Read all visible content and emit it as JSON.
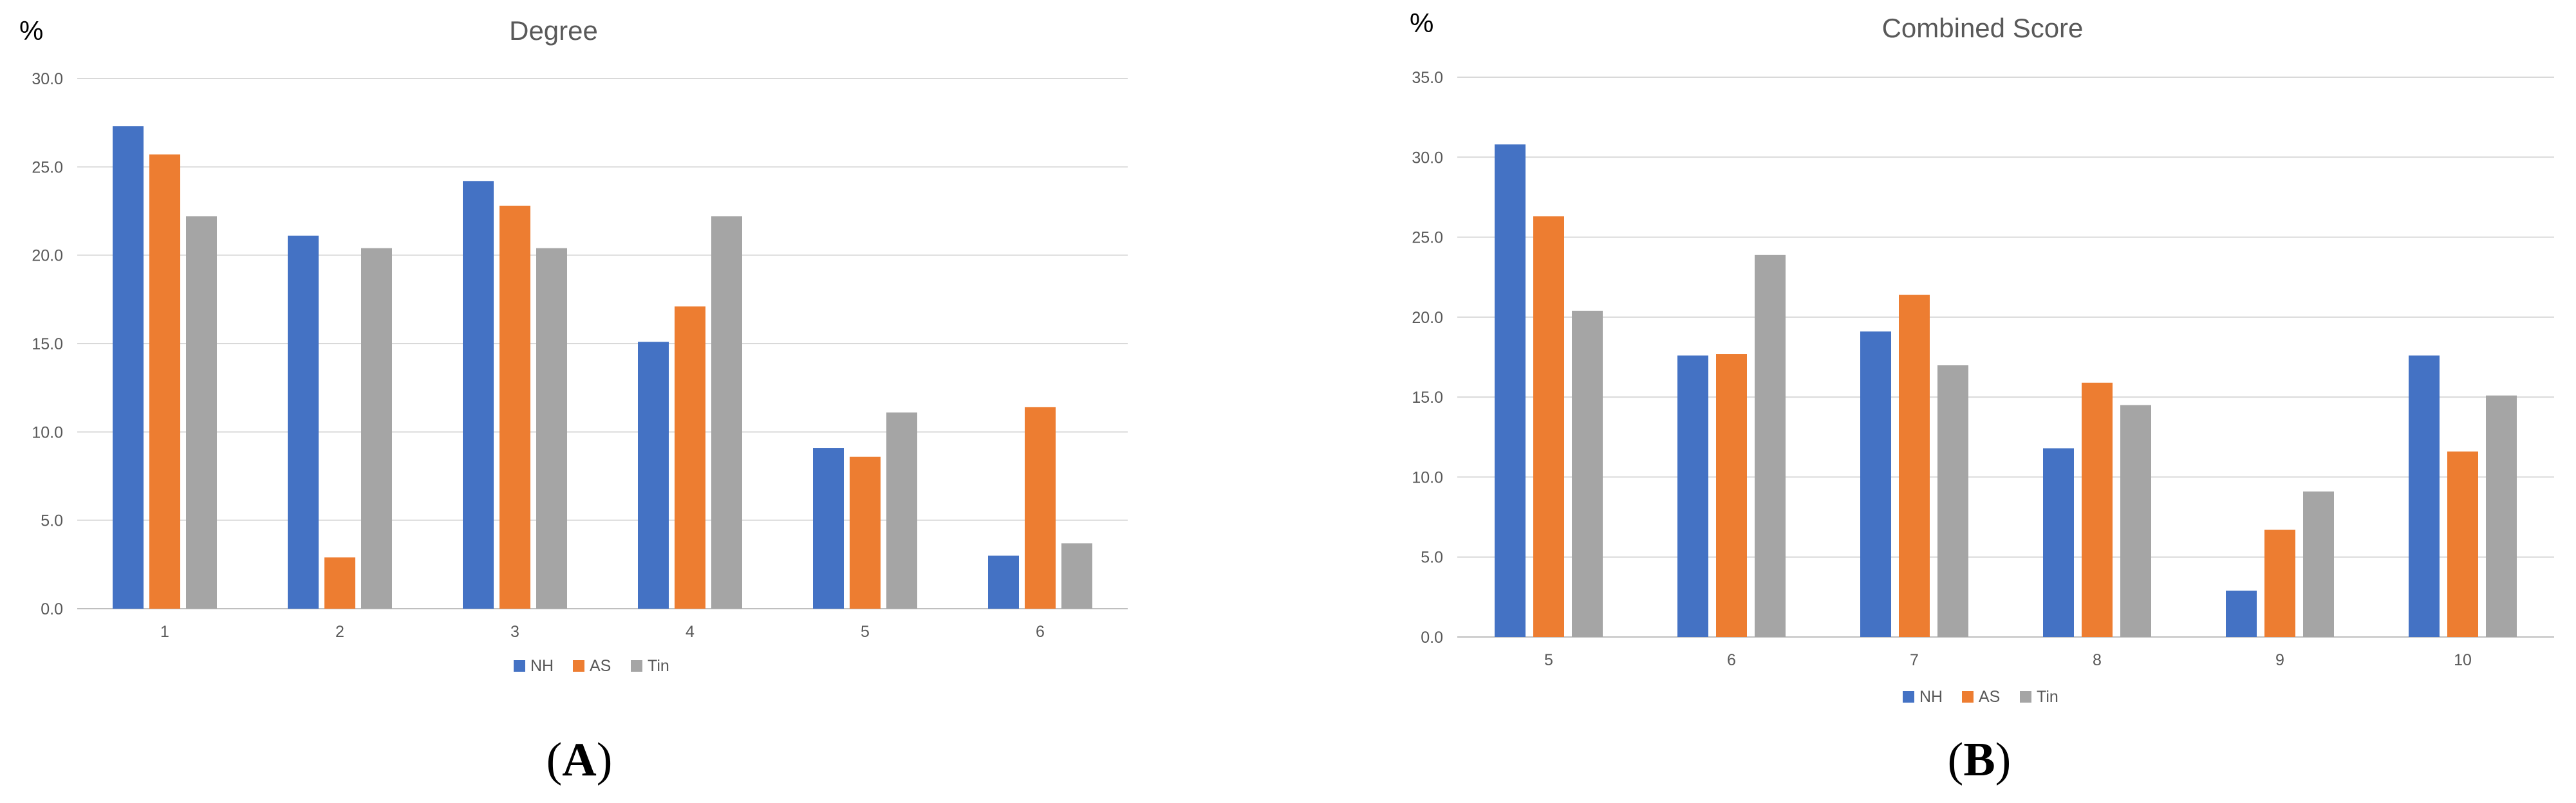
{
  "chart_data": [
    {
      "type": "bar",
      "title": "Degree",
      "unit": "%",
      "panel_label": "A",
      "categories": [
        "1",
        "2",
        "3",
        "4",
        "5",
        "6"
      ],
      "series": [
        {
          "name": "NH",
          "color": "#4472C4",
          "values": [
            27.3,
            21.1,
            24.2,
            15.1,
            9.1,
            3.0
          ]
        },
        {
          "name": "AS",
          "color": "#ED7D31",
          "values": [
            25.7,
            2.9,
            22.8,
            17.1,
            8.6,
            11.4
          ]
        },
        {
          "name": "Tin",
          "color": "#A5A5A5",
          "values": [
            22.2,
            20.4,
            20.4,
            22.2,
            11.1,
            3.7
          ]
        }
      ],
      "ylim": [
        0,
        30
      ],
      "yticks": [
        "0.0",
        "5.0",
        "10.0",
        "15.0",
        "20.0",
        "25.0",
        "30.0"
      ],
      "grid": true,
      "legend": "bottom"
    },
    {
      "type": "bar",
      "title": "Combined Score",
      "unit": "%",
      "panel_label": "B",
      "categories": [
        "5",
        "6",
        "7",
        "8",
        "9",
        "10"
      ],
      "series": [
        {
          "name": "NH",
          "color": "#4472C4",
          "values": [
            30.8,
            17.6,
            19.1,
            11.8,
            2.9,
            17.6
          ]
        },
        {
          "name": "AS",
          "color": "#ED7D31",
          "values": [
            26.3,
            17.7,
            21.4,
            15.9,
            6.7,
            11.6
          ]
        },
        {
          "name": "Tin",
          "color": "#A5A5A5",
          "values": [
            20.4,
            23.9,
            17.0,
            14.5,
            9.1,
            15.1
          ]
        }
      ],
      "ylim": [
        0,
        35
      ],
      "yticks": [
        "0.0",
        "5.0",
        "10.0",
        "15.0",
        "20.0",
        "25.0",
        "30.0",
        "35.0"
      ],
      "grid": true,
      "legend": "bottom"
    }
  ]
}
